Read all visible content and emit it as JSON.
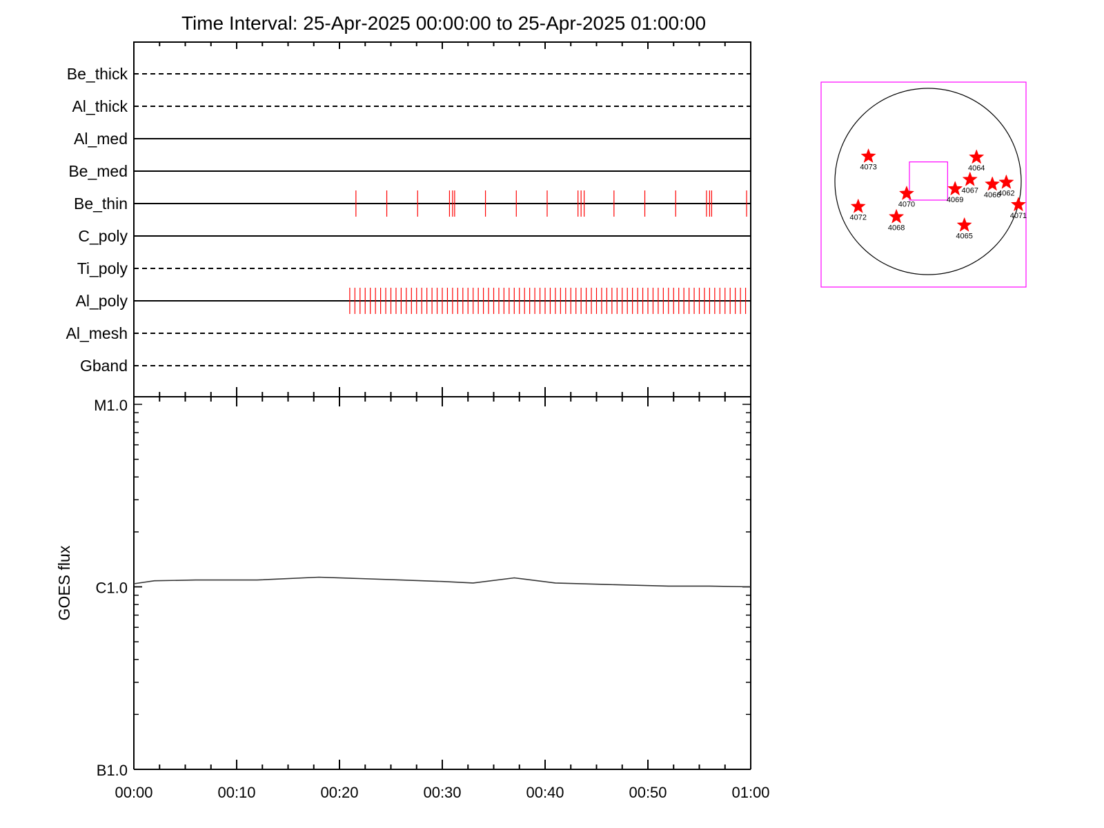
{
  "title": "Time Interval: 25-Apr-2025 00:00:00 to 25-Apr-2025 01:00:00",
  "colors": {
    "event": "#ff0000",
    "axis": "#000000",
    "curve": "#333333",
    "map": "#ff00ff",
    "star": "#ff0000"
  },
  "chart_data": [
    {
      "type": "timeline",
      "x_units": "minutes after 25-Apr-2025 00:00:00",
      "xlim": [
        0,
        60
      ],
      "channels": [
        {
          "name": "Be_thick",
          "style": "dashed",
          "events": []
        },
        {
          "name": "Al_thick",
          "style": "dashed",
          "events": []
        },
        {
          "name": "Al_med",
          "style": "solid",
          "events": []
        },
        {
          "name": "Be_med",
          "style": "solid",
          "events": []
        },
        {
          "name": "Be_thin",
          "style": "solid",
          "events": [
            21.6,
            24.6,
            27.6,
            30.7,
            31.0,
            31.2,
            34.2,
            37.2,
            40.2,
            43.2,
            43.5,
            43.8,
            46.7,
            49.7,
            52.7,
            55.7,
            56.0,
            56.2,
            59.6
          ]
        },
        {
          "name": "C_poly",
          "style": "solid",
          "events": []
        },
        {
          "name": "Ti_poly",
          "style": "dashed",
          "events": []
        },
        {
          "name": "Al_poly",
          "style": "solid",
          "events": []
        },
        {
          "name": "Al_mesh",
          "style": "dashed",
          "events": []
        },
        {
          "name": "Gband",
          "style": "dashed",
          "events": []
        }
      ],
      "al_poly_events": {
        "start": 21.0,
        "end": 59.9,
        "interval": 0.5
      }
    },
    {
      "type": "line",
      "ylabel": "GOES flux",
      "yscale": "log",
      "yticks": [
        {
          "label": "M1.0",
          "value": 1e-05
        },
        {
          "label": "C1.0",
          "value": 1e-06
        },
        {
          "label": "B1.0",
          "value": 1e-07
        }
      ],
      "ylim": [
        1e-07,
        1e-05
      ],
      "xlim": [
        0,
        60
      ],
      "xticks": [
        "00:00",
        "00:10",
        "00:20",
        "00:30",
        "00:40",
        "00:50",
        "01:00"
      ],
      "series": [
        {
          "x": [
            0,
            2,
            6,
            12,
            18,
            22,
            26,
            30,
            33,
            37,
            41,
            46,
            52,
            56,
            60
          ],
          "y": [
            1.04e-06,
            1.08e-06,
            1.09e-06,
            1.09e-06,
            1.13e-06,
            1.11e-06,
            1.09e-06,
            1.07e-06,
            1.05e-06,
            1.12e-06,
            1.05e-06,
            1.03e-06,
            1.01e-06,
            1.01e-06,
            1e-06
          ]
        }
      ]
    },
    {
      "type": "scatter",
      "description_units": "solar disk positions (normalized to disk radius, +x west, +y north)",
      "regions": [
        {
          "label": "4073",
          "x": -0.64,
          "y": 0.27
        },
        {
          "label": "4064",
          "x": 0.52,
          "y": 0.26
        },
        {
          "label": "4067",
          "x": 0.45,
          "y": 0.02
        },
        {
          "label": "4070",
          "x": -0.23,
          "y": -0.13
        },
        {
          "label": "4069",
          "x": 0.29,
          "y": -0.08
        },
        {
          "label": "4066",
          "x": 0.69,
          "y": -0.03
        },
        {
          "label": "4062",
          "x": 0.84,
          "y": -0.01
        },
        {
          "label": "4071",
          "x": 0.97,
          "y": -0.25
        },
        {
          "label": "4072",
          "x": -0.75,
          "y": -0.27
        },
        {
          "label": "4068",
          "x": -0.34,
          "y": -0.38
        },
        {
          "label": "4065",
          "x": 0.39,
          "y": -0.47
        }
      ],
      "fov_box": {
        "x0": -0.2,
        "x1": 0.21,
        "y0": -0.2,
        "y1": 0.21
      }
    }
  ]
}
